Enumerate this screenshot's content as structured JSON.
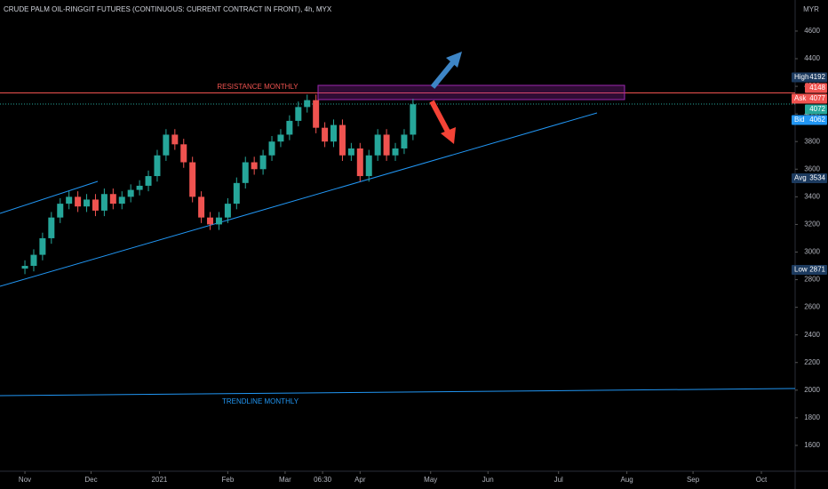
{
  "chart_data": {
    "type": "candlestick",
    "title": "CRUDE PALM OIL-RINGGIT FUTURES (CONTINUOUS: CURRENT CONTRACT IN FRONT), 4h, MYX",
    "currency": "MYR",
    "annotations": [
      "RESISTANCE MONTHLY",
      "TRENDLINE MONTHLY"
    ],
    "up_color": "#26a69a",
    "down_color": "#ef5350",
    "x": [
      0,
      4,
      8,
      12,
      16,
      20,
      24,
      28,
      32,
      36,
      40,
      44,
      48,
      52,
      56,
      60,
      64,
      68,
      72,
      76,
      80,
      84,
      88,
      92,
      96,
      100,
      104,
      108,
      112,
      116,
      120,
      124,
      128,
      132,
      136,
      140,
      144,
      148,
      152,
      156,
      160,
      164,
      168,
      172,
      176
    ],
    "open": [
      2880,
      2900,
      2980,
      3100,
      3250,
      3350,
      3400,
      3330,
      3380,
      3300,
      3420,
      3350,
      3400,
      3450,
      3480,
      3550,
      3700,
      3850,
      3780,
      3650,
      3400,
      3250,
      3200,
      3250,
      3350,
      3500,
      3650,
      3600,
      3700,
      3800,
      3850,
      3950,
      4050,
      4100,
      3900,
      3800,
      3920,
      3700,
      3750,
      3550,
      3700,
      3850,
      3700,
      3750,
      3850
    ],
    "high": [
      2940,
      3020,
      3140,
      3290,
      3390,
      3440,
      3440,
      3420,
      3420,
      3460,
      3460,
      3440,
      3490,
      3520,
      3590,
      3740,
      3890,
      3890,
      3820,
      3690,
      3440,
      3290,
      3290,
      3390,
      3540,
      3690,
      3690,
      3740,
      3840,
      3890,
      3990,
      4090,
      4140,
      4140,
      3940,
      3960,
      3960,
      3790,
      3790,
      3740,
      3890,
      3890,
      3790,
      3890,
      4110
    ],
    "low": [
      2840,
      2860,
      2940,
      3060,
      3210,
      3310,
      3290,
      3290,
      3260,
      3260,
      3310,
      3310,
      3360,
      3410,
      3440,
      3510,
      3660,
      3740,
      3610,
      3360,
      3210,
      3160,
      3160,
      3210,
      3310,
      3460,
      3560,
      3560,
      3660,
      3760,
      3810,
      3910,
      4010,
      3860,
      3760,
      3760,
      3660,
      3660,
      3510,
      3510,
      3660,
      3660,
      3660,
      3710,
      3810
    ],
    "close": [
      2900,
      2980,
      3100,
      3250,
      3350,
      3400,
      3330,
      3380,
      3300,
      3420,
      3350,
      3400,
      3450,
      3480,
      3550,
      3700,
      3850,
      3780,
      3650,
      3400,
      3250,
      3200,
      3250,
      3350,
      3500,
      3650,
      3600,
      3700,
      3800,
      3850,
      3950,
      4050,
      4100,
      3900,
      3800,
      3920,
      3700,
      3750,
      3550,
      3700,
      3850,
      3700,
      3750,
      3850,
      4070
    ],
    "xlim": [
      -11.3,
      349.3
    ],
    "xticks": [
      {
        "value": 0,
        "label": "Nov"
      },
      {
        "value": 30,
        "label": "Dec"
      },
      {
        "value": 61,
        "label": "2021"
      },
      {
        "value": 92,
        "label": "Feb"
      },
      {
        "value": 118,
        "label": "Mar"
      },
      {
        "value": 135,
        "label": "06:30"
      },
      {
        "value": 152,
        "label": "Apr"
      },
      {
        "value": 184,
        "label": "May"
      },
      {
        "value": 210,
        "label": "Jun"
      },
      {
        "value": 242,
        "label": "Jul"
      },
      {
        "value": 273,
        "label": "Aug"
      },
      {
        "value": 303,
        "label": "Sep"
      },
      {
        "value": 334,
        "label": "Oct"
      }
    ],
    "ylim": [
      1413,
      4825
    ],
    "yticks": [
      1600,
      1800,
      2000,
      2200,
      2400,
      2600,
      2800,
      3000,
      3200,
      3400,
      3600,
      3800,
      4000,
      4200,
      4400,
      4600
    ],
    "price_labels": [
      {
        "label": "High",
        "value": 4192,
        "color": "#1c3a5e"
      },
      {
        "value": 4148,
        "color": "#ef5350"
      },
      {
        "label": "Ask",
        "value": 4077,
        "color": "#ef5350"
      },
      {
        "value": 4072,
        "color": "#26a69a"
      },
      {
        "label": "Bid",
        "value": 4062,
        "color": "#2196f3"
      },
      {
        "label": "Avg",
        "value": 3534,
        "color": "#1c3a5e"
      },
      {
        "label": "Low",
        "value": 2871,
        "color": "#1c3a5e"
      }
    ]
  }
}
